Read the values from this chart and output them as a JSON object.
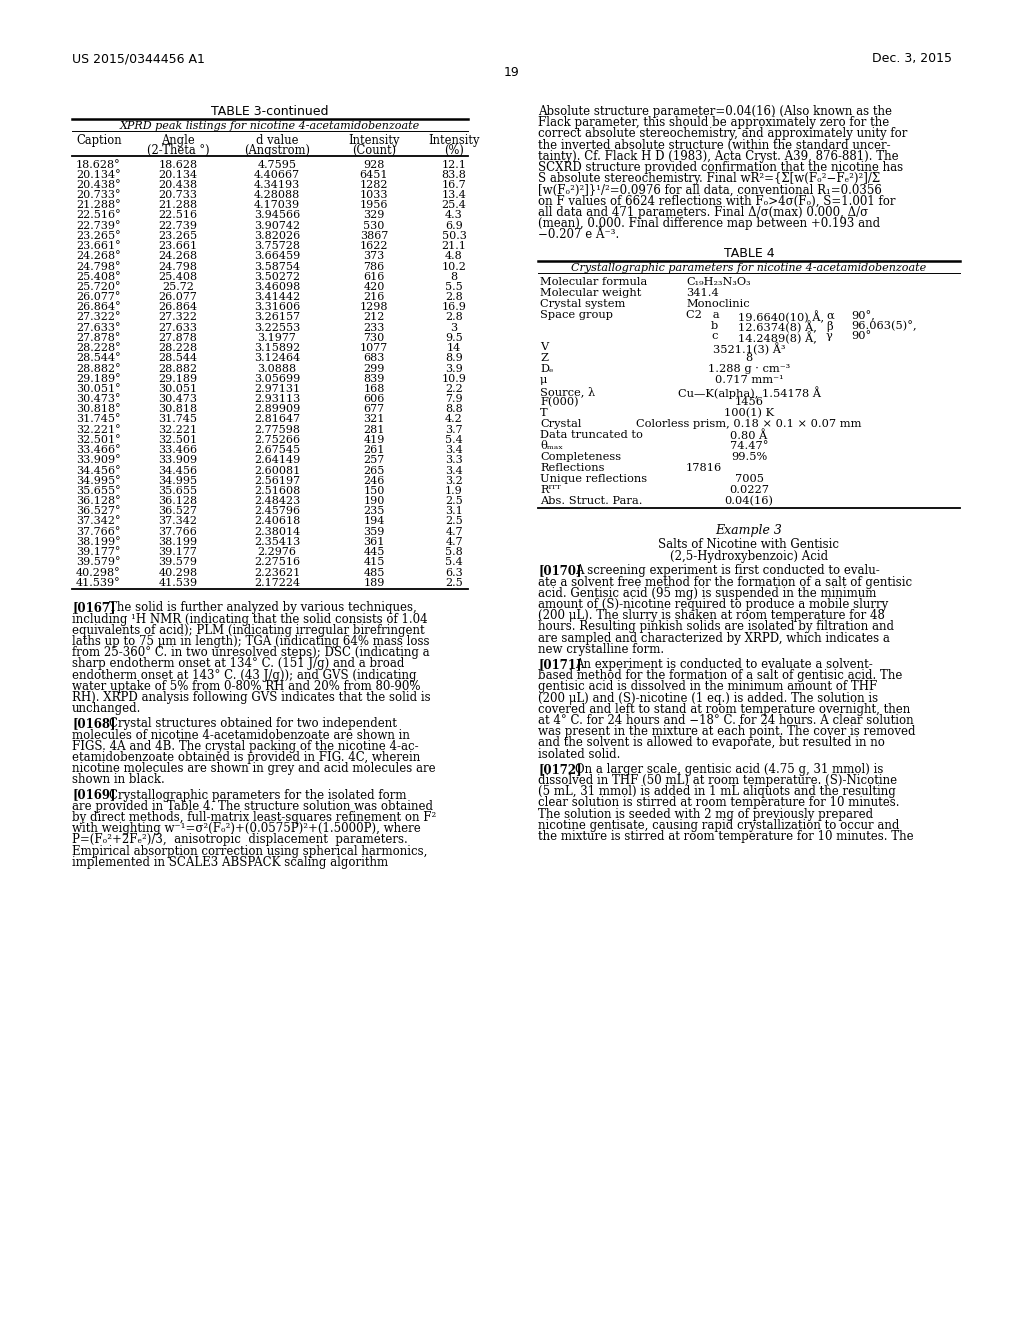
{
  "page_number": "19",
  "left_header": "US 2015/0344456 A1",
  "right_header": "Dec. 3, 2015",
  "table3_title": "TABLE 3-continued",
  "table3_subtitle": "XPRD peak listings for nicotine 4-acetamidobenzoate",
  "table3_headers": [
    "Caption",
    "Angle\n(2-Theta °)",
    "d value\n(Angstrom)",
    "Intensity\n(Count)",
    "Intensity\n(%)"
  ],
  "table3_data": [
    [
      "18.628°",
      "18.628",
      "4.7595",
      "928",
      "12.1"
    ],
    [
      "20.134°",
      "20.134",
      "4.40667",
      "6451",
      "83.8"
    ],
    [
      "20.438°",
      "20.438",
      "4.34193",
      "1282",
      "16.7"
    ],
    [
      "20.733°",
      "20.733",
      "4.28088",
      "1033",
      "13.4"
    ],
    [
      "21.288°",
      "21.288",
      "4.17039",
      "1956",
      "25.4"
    ],
    [
      "22.516°",
      "22.516",
      "3.94566",
      "329",
      "4.3"
    ],
    [
      "22.739°",
      "22.739",
      "3.90742",
      "530",
      "6.9"
    ],
    [
      "23.265°",
      "23.265",
      "3.82026",
      "3867",
      "50.3"
    ],
    [
      "23.661°",
      "23.661",
      "3.75728",
      "1622",
      "21.1"
    ],
    [
      "24.268°",
      "24.268",
      "3.66459",
      "373",
      "4.8"
    ],
    [
      "24.798°",
      "24.798",
      "3.58754",
      "786",
      "10.2"
    ],
    [
      "25.408°",
      "25.408",
      "3.50272",
      "616",
      "8"
    ],
    [
      "25.720°",
      "25.72",
      "3.46098",
      "420",
      "5.5"
    ],
    [
      "26.077°",
      "26.077",
      "3.41442",
      "216",
      "2.8"
    ],
    [
      "26.864°",
      "26.864",
      "3.31606",
      "1298",
      "16.9"
    ],
    [
      "27.322°",
      "27.322",
      "3.26157",
      "212",
      "2.8"
    ],
    [
      "27.633°",
      "27.633",
      "3.22553",
      "233",
      "3"
    ],
    [
      "27.878°",
      "27.878",
      "3.1977",
      "730",
      "9.5"
    ],
    [
      "28.228°",
      "28.228",
      "3.15892",
      "1077",
      "14"
    ],
    [
      "28.544°",
      "28.544",
      "3.12464",
      "683",
      "8.9"
    ],
    [
      "28.882°",
      "28.882",
      "3.0888",
      "299",
      "3.9"
    ],
    [
      "29.189°",
      "29.189",
      "3.05699",
      "839",
      "10.9"
    ],
    [
      "30.051°",
      "30.051",
      "2.97131",
      "168",
      "2.2"
    ],
    [
      "30.473°",
      "30.473",
      "2.93113",
      "606",
      "7.9"
    ],
    [
      "30.818°",
      "30.818",
      "2.89909",
      "677",
      "8.8"
    ],
    [
      "31.745°",
      "31.745",
      "2.81647",
      "321",
      "4.2"
    ],
    [
      "32.221°",
      "32.221",
      "2.77598",
      "281",
      "3.7"
    ],
    [
      "32.501°",
      "32.501",
      "2.75266",
      "419",
      "5.4"
    ],
    [
      "33.466°",
      "33.466",
      "2.67545",
      "261",
      "3.4"
    ],
    [
      "33.909°",
      "33.909",
      "2.64149",
      "257",
      "3.3"
    ],
    [
      "34.456°",
      "34.456",
      "2.60081",
      "265",
      "3.4"
    ],
    [
      "34.995°",
      "34.995",
      "2.56197",
      "246",
      "3.2"
    ],
    [
      "35.655°",
      "35.655",
      "2.51608",
      "150",
      "1.9"
    ],
    [
      "36.128°",
      "36.128",
      "2.48423",
      "190",
      "2.5"
    ],
    [
      "36.527°",
      "36.527",
      "2.45796",
      "235",
      "3.1"
    ],
    [
      "37.342°",
      "37.342",
      "2.40618",
      "194",
      "2.5"
    ],
    [
      "37.766°",
      "37.766",
      "2.38014",
      "359",
      "4.7"
    ],
    [
      "38.199°",
      "38.199",
      "2.35413",
      "361",
      "4.7"
    ],
    [
      "39.177°",
      "39.177",
      "2.2976",
      "445",
      "5.8"
    ],
    [
      "39.579°",
      "39.579",
      "2.27516",
      "415",
      "5.4"
    ],
    [
      "40.298°",
      "40.298",
      "2.23621",
      "485",
      "6.3"
    ],
    [
      "41.539°",
      "41.539",
      "2.17224",
      "189",
      "2.5"
    ]
  ],
  "table4_title": "TABLE 4",
  "table4_subtitle": "Crystallographic parameters for nicotine 4-acetamidobenzoate",
  "table4_rows": [
    {
      "label": "Molecular formula",
      "value": "C₁₉H₂₃N₃O₃",
      "align": "left",
      "extra_lines": []
    },
    {
      "label": "Molecular weight",
      "value": "341.4",
      "align": "left",
      "extra_lines": []
    },
    {
      "label": "Crystal system",
      "value": "Monoclinic",
      "align": "left",
      "extra_lines": []
    },
    {
      "label": "Space group",
      "value": "C2   a",
      "align": "left",
      "extra_lines": [
        "b",
        "c"
      ]
    },
    {
      "label": "V",
      "value": "3521.1(3) Å³",
      "align": "center",
      "extra_lines": []
    },
    {
      "label": "Z",
      "value": "8",
      "align": "center",
      "extra_lines": []
    },
    {
      "label": "Dₑ",
      "value": "1.288 g · cm⁻³",
      "align": "center",
      "extra_lines": []
    },
    {
      "label": "μ",
      "value": "0.717 mm⁻¹",
      "align": "center",
      "extra_lines": []
    },
    {
      "label": "Source, λ",
      "value": "Cu—K(alpha), 1.54178 Å",
      "align": "center",
      "extra_lines": []
    },
    {
      "label": "F(000)",
      "value": "1456",
      "align": "center",
      "extra_lines": []
    },
    {
      "label": "T",
      "value": "100(1) K",
      "align": "center",
      "extra_lines": []
    },
    {
      "label": "Crystal",
      "value": "Colorless prism, 0.18 × 0.1 × 0.07 mm",
      "align": "center",
      "extra_lines": []
    },
    {
      "label": "Data truncated to",
      "value": "0.80 Å",
      "align": "center",
      "extra_lines": []
    },
    {
      "label": "θₘₐₓ",
      "value": "74.47°",
      "align": "center",
      "extra_lines": []
    },
    {
      "label": "Completeness",
      "value": "99.5%",
      "align": "center",
      "extra_lines": []
    },
    {
      "label": "Reflections",
      "value": "17816",
      "align": "left",
      "extra_lines": []
    },
    {
      "label": "Unique reflections",
      "value": "7005",
      "align": "center",
      "extra_lines": []
    },
    {
      "label": "Rᴵᵀᵀ",
      "value": "0.0227",
      "align": "center",
      "extra_lines": []
    },
    {
      "label": "Abs. Struct. Para.",
      "value": "0.04(16)",
      "align": "center",
      "extra_lines": []
    }
  ],
  "space_group_detail": [
    [
      "a",
      "19.6640(10) Å,",
      "α",
      "90°,"
    ],
    [
      "b",
      "12.6374(8) Å,",
      "β",
      "96.063(5)°,"
    ],
    [
      "c",
      "14.2489(8) Å,",
      "γ",
      "90°"
    ]
  ],
  "example3_title": "Example 3",
  "example3_subtitle1": "Salts of Nicotine with Gentisic",
  "example3_subtitle2": "(2,5-Hydroxybenzoic) Acid",
  "right_para_lines": [
    "Absolute structure parameter=0.04(16) (Also known as the",
    "Flack parameter, this should be approximately zero for the",
    "correct absolute stereochemistry, and approximately unity for",
    "the inverted absolute structure (within the standard uncer-",
    "tainty). Cf. Flack H D (1983), Acta Cryst. A39, 876-881). The",
    "SCXRD structure provided confirmation that the nicotine has",
    "S absolute stereochemistry. Final wR²={Σ[w(Fₒ²−Fₑ²)²]/Σ",
    "[w(Fₒ²)²]}¹/²=0.0976 for all data, conventional R₁=0.0356",
    "on F values of 6624 reflections with Fₒ>4σ(Fₒ), S=1.001 for",
    "all data and 471 parameters. Final Δ/σ(max) 0.000, Δ/σ",
    "(mean), 0.000. Final difference map between +0.193 and",
    "−0.207 e Å⁻³."
  ],
  "para167_num": "[0167]",
  "para167_lines": [
    "   The solid is further analyzed by various techniques,",
    "including ¹H NMR (indicating that the solid consists of 1.04",
    "equivalents of acid); PLM (indicating irregular birefringent",
    "laths up to 75 μm in length); TGA (indicating 64% mass loss",
    "from 25-360° C. in two unresolved steps); DSC (indicating a",
    "sharp endotherm onset at 134° C. (151 J/g) and a broad",
    "endotherm onset at 143° C. (43 J/g)); and GVS (indicating",
    "water uptake of 5% from 0-80% RH and 20% from 80-90%",
    "RH). XRPD analysis following GVS indicates that the solid is",
    "unchanged."
  ],
  "para168_num": "[0168]",
  "para168_lines": [
    "   Crystal structures obtained for two independent",
    "molecules of nicotine 4-acetamidobenzoate are shown in",
    "FIGS. 4A and 4B. The crystal packing of the nicotine 4-ac-",
    "etamidobenzoate obtained is provided in FIG. 4C, wherein",
    "nicotine molecules are shown in grey and acid molecules are",
    "shown in black."
  ],
  "para169_num": "[0169]",
  "para169_lines": [
    "   Crystallographic parameters for the isolated form",
    "are provided in Table 4. The structure solution was obtained",
    "by direct methods, full-matrix least-squares refinement on F²",
    "with weighting w⁻¹=σ²(Fₒ²)+(0.0575P)²+(1.5000P), where",
    "P=(Fₒ²+2Fₑ²)/3,  anisotropic  displacement  parameters.",
    "Empirical absorption correction using spherical harmonics,",
    "implemented in SCALE3 ABSPACK scaling algorithm"
  ],
  "para170_num": "[0170]",
  "para170_lines": [
    "   A screening experiment is first conducted to evalu-",
    "ate a solvent free method for the formation of a salt of gentisic",
    "acid. Gentisic acid (95 mg) is suspended in the minimum",
    "amount of (S)-nicotine required to produce a mobile slurry",
    "(200 μL). The slurry is shaken at room temperature for 48",
    "hours. Resulting pinkish solids are isolated by filtration and",
    "are sampled and characterized by XRPD, which indicates a",
    "new crystalline form."
  ],
  "para171_num": "[0171]",
  "para171_lines": [
    "   An experiment is conducted to evaluate a solvent-",
    "based method for the formation of a salt of gentisic acid. The",
    "gentisic acid is dissolved in the minimum amount of THF",
    "(200 μL) and (S)-nicotine (1 eq.) is added. The solution is",
    "covered and left to stand at room temperature overnight, then",
    "at 4° C. for 24 hours and −18° C. for 24 hours. A clear solution",
    "was present in the mixture at each point. The cover is removed",
    "and the solvent is allowed to evaporate, but resulted in no",
    "isolated solid."
  ],
  "para172_num": "[0172]",
  "para172_lines": [
    "   On a larger scale, gentisic acid (4.75 g, 31 mmol) is",
    "dissolved in THF (50 mL) at room temperature. (S)-Nicotine",
    "(5 mL, 31 mmol) is added in 1 mL aliquots and the resulting",
    "clear solution is stirred at room temperature for 10 minutes.",
    "The solution is seeded with 2 mg of previously prepared",
    "nicotine gentisate, causing rapid crystallization to occur and",
    "the mixture is stirred at room temperature for 10 minutes. The"
  ],
  "background_color": "#ffffff",
  "text_color": "#000000"
}
